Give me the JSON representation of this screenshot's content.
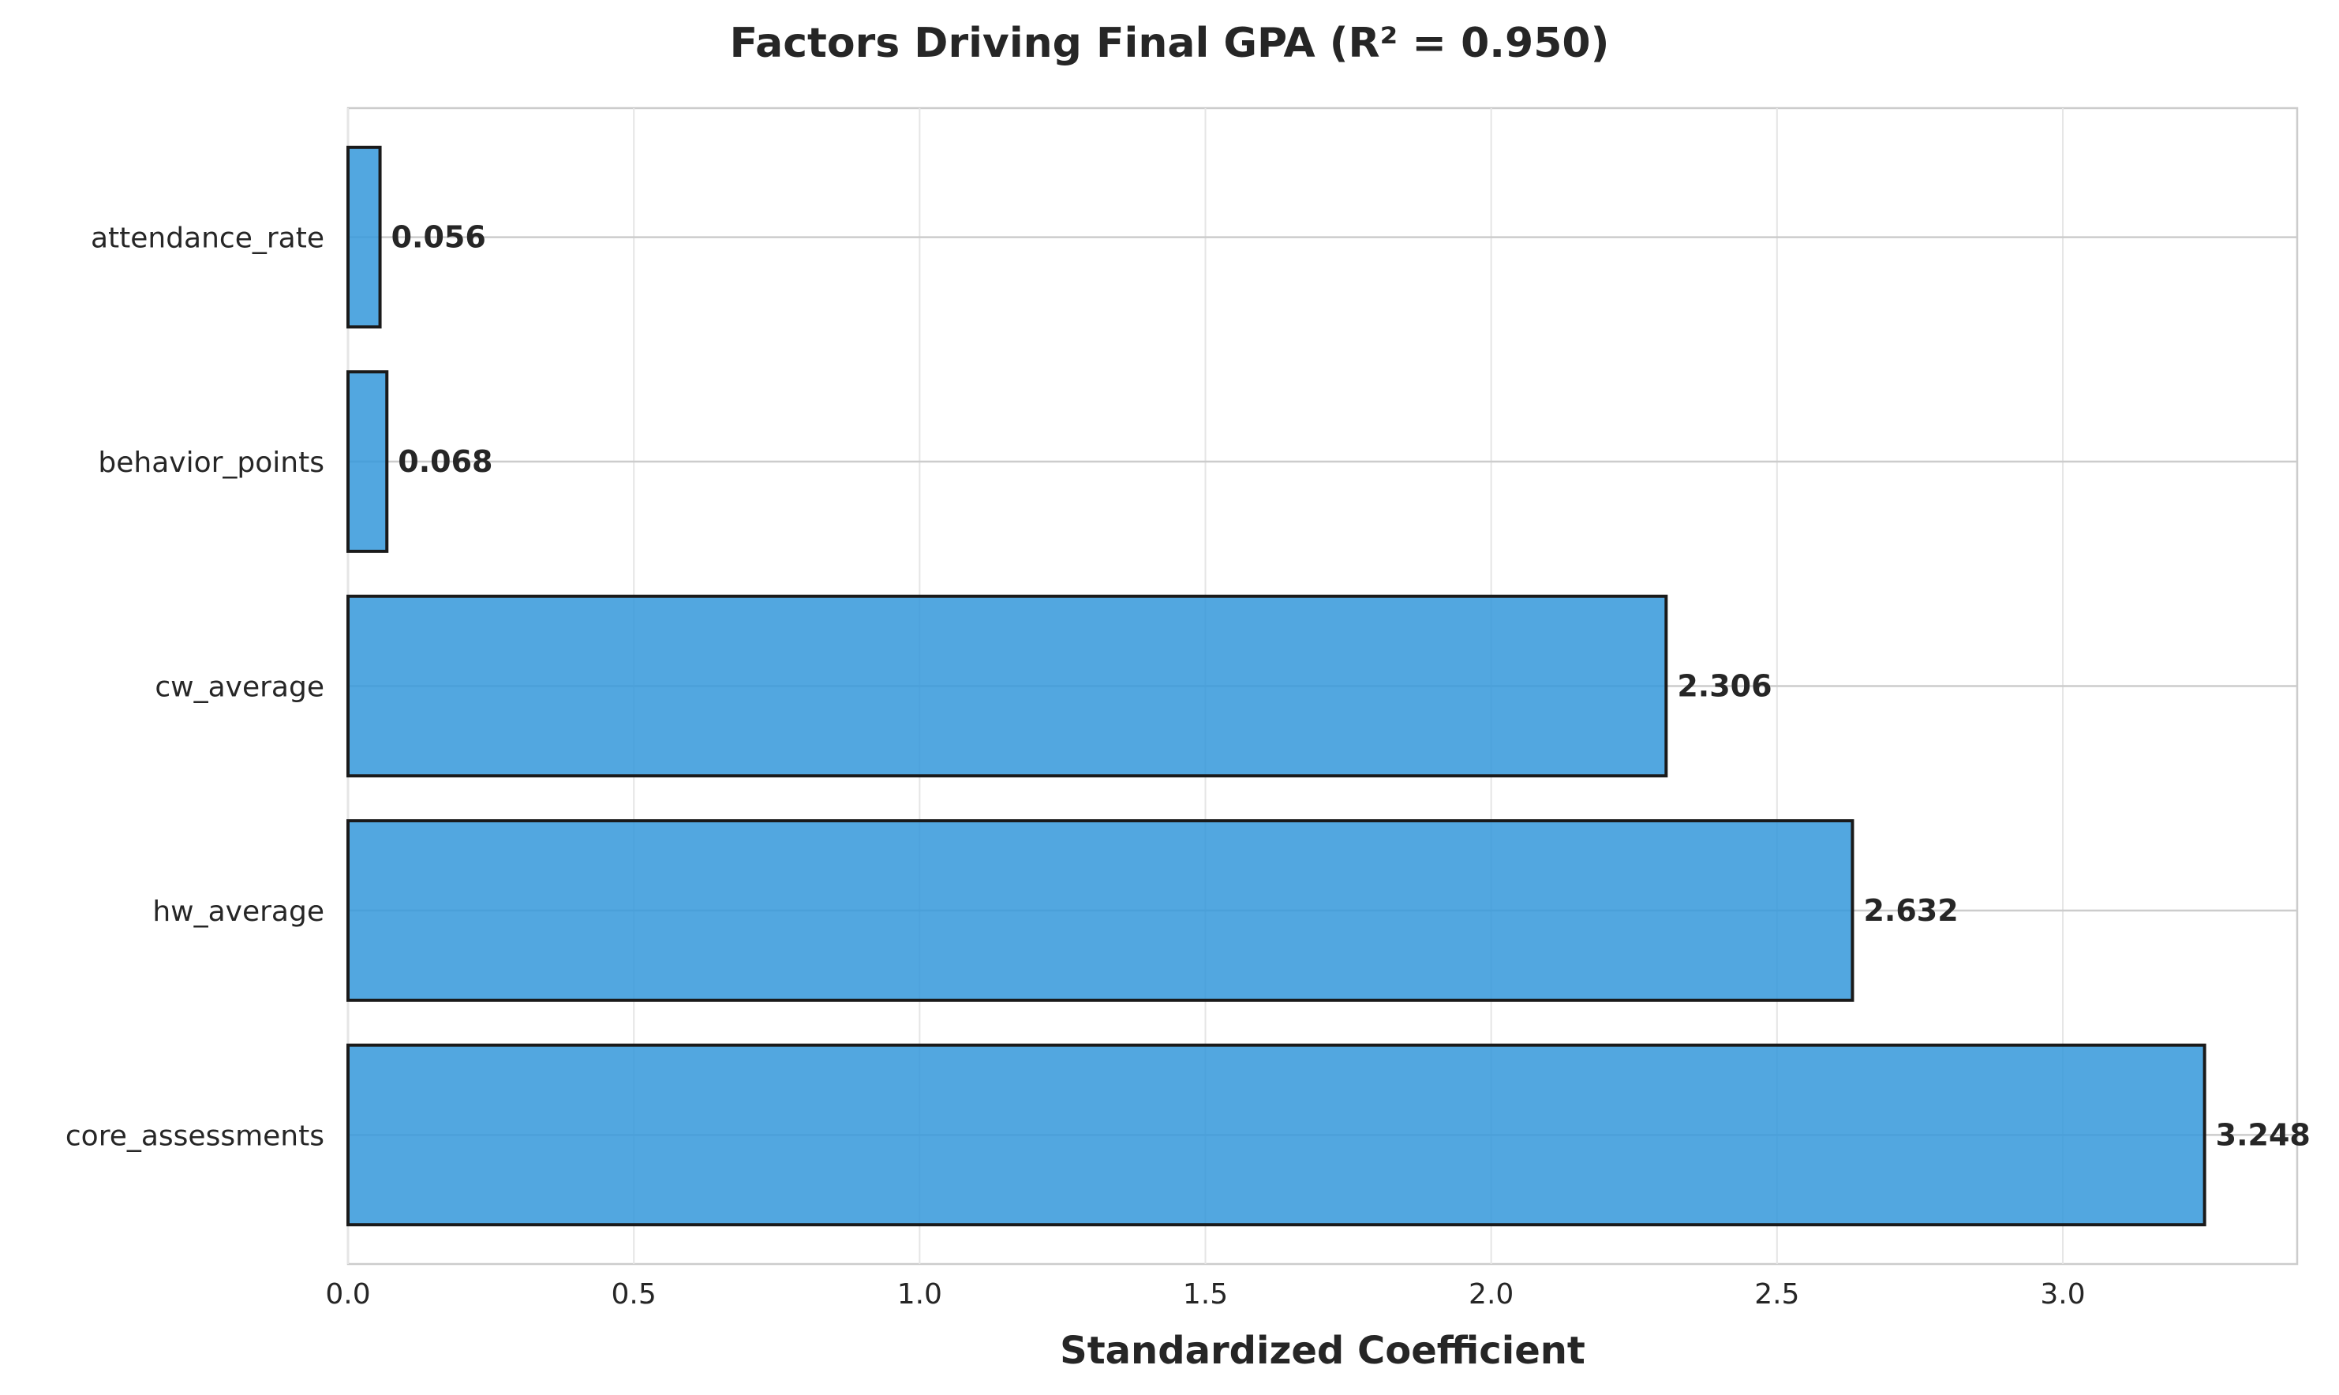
{
  "chart_data": {
    "type": "bar",
    "orientation": "horizontal",
    "title": "Factors Driving Final GPA (R² = 0.950)",
    "xlabel": "Standardized Coefficient",
    "ylabel": "",
    "categories": [
      "attendance_rate",
      "behavior_points",
      "cw_average",
      "hw_average",
      "core_assessments"
    ],
    "values": [
      0.056,
      0.068,
      2.306,
      2.632,
      3.248
    ],
    "data_labels": [
      "0.056",
      "0.068",
      "2.306",
      "2.632",
      "3.248"
    ],
    "xlim": [
      0,
      3.41
    ],
    "xticks": [
      0.0,
      0.5,
      1.0,
      1.5,
      2.0,
      2.5,
      3.0
    ],
    "xtick_labels": [
      "0.0",
      "0.5",
      "1.0",
      "1.5",
      "2.0",
      "2.5",
      "3.0"
    ],
    "grid": true,
    "bar_color": "#3498db",
    "bar_edge_color": "#1a1a1a",
    "legend": "none"
  }
}
